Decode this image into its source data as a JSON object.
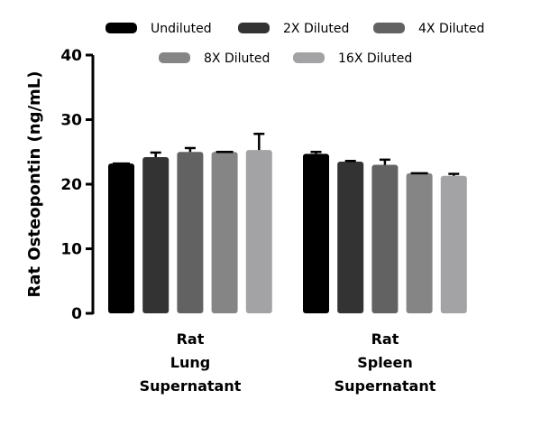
{
  "chart_data": {
    "type": "bar",
    "title": "",
    "xlabel": "",
    "ylabel": "Rat Osteopontin (ng/mL)",
    "ylim": [
      0,
      40
    ],
    "yticks": [
      0,
      10,
      20,
      30,
      40
    ],
    "grid": false,
    "legend_placement": "top",
    "categories": [
      [
        "Rat",
        "Lung",
        "Supernatant"
      ],
      [
        "Rat",
        "Spleen",
        "Supernatant"
      ]
    ],
    "series": [
      {
        "name": "Undiluted",
        "color": "#000000",
        "values": [
          23.2,
          24.7
        ],
        "error_upper": [
          23.2,
          25.0
        ]
      },
      {
        "name": "2X Diluted",
        "color": "#333333",
        "values": [
          24.2,
          23.5
        ],
        "error_upper": [
          24.9,
          23.6
        ]
      },
      {
        "name": "4X Diluted",
        "color": "#626262",
        "values": [
          25.0,
          23.0
        ],
        "error_upper": [
          25.6,
          23.8
        ]
      },
      {
        "name": "8X Diluted",
        "color": "#858585",
        "values": [
          25.0,
          21.7
        ],
        "error_upper": [
          25.0,
          21.7
        ]
      },
      {
        "name": "16X Diluted",
        "color": "#a3a3a5",
        "values": [
          25.3,
          21.3
        ],
        "error_upper": [
          27.8,
          21.6
        ]
      }
    ]
  }
}
